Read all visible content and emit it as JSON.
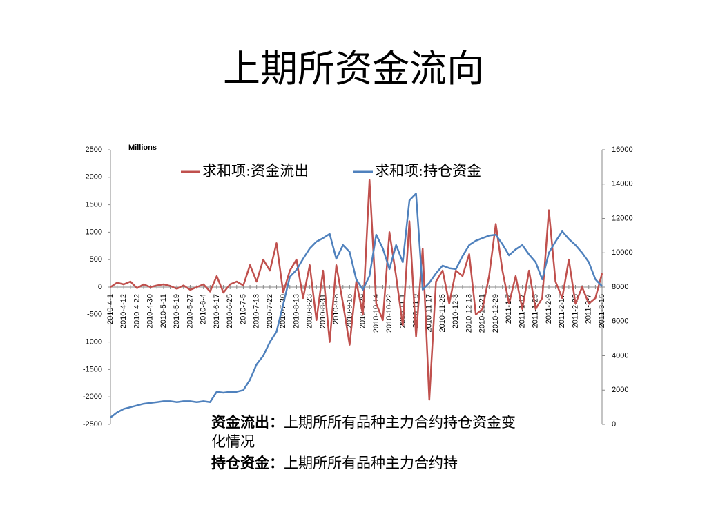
{
  "title": "上期所资金流向",
  "chart_data": {
    "type": "line",
    "unit_label": "Millions",
    "categories": [
      "2010-4-1",
      null,
      "2010-4-12",
      null,
      "2010-4-22",
      null,
      "2010-4-30",
      null,
      "2010-5-11",
      null,
      "2010-5-19",
      null,
      "2010-5-27",
      null,
      "2010-6-4",
      null,
      "2010-6-17",
      null,
      "2010-6-25",
      null,
      "2010-7-5",
      null,
      "2010-7-13",
      null,
      "2010-7-22",
      null,
      "2010-7-30",
      null,
      "2010-8-13",
      null,
      "2010-8-23",
      null,
      "2010-8-31",
      null,
      "2010-9-8",
      null,
      "2010-9-16",
      null,
      "2010-9-29",
      null,
      "2010-10-14",
      null,
      "2010-10-22",
      null,
      "2010-11-1",
      null,
      "2010-11-9",
      null,
      "2010-11-17",
      null,
      "2010-11-25",
      null,
      "2010-12-3",
      null,
      "2010-12-13",
      null,
      "2010-12-21",
      null,
      "2010-12-29",
      null,
      "2011-1-7",
      null,
      "2011-1-17",
      null,
      "2011-1-25",
      null,
      "2011-2-9",
      null,
      "2011-2-17",
      null,
      "2011-2-25",
      null,
      "2011-3-7",
      null,
      "2011-3-15"
    ],
    "series": [
      {
        "name": "求和项:资金流出",
        "color": "#c0504d",
        "values": [
          0,
          80,
          50,
          100,
          -20,
          50,
          0,
          30,
          50,
          20,
          -30,
          30,
          -50,
          0,
          50,
          -80,
          200,
          -100,
          50,
          100,
          30,
          400,
          100,
          500,
          300,
          800,
          -100,
          300,
          500,
          -200,
          400,
          -600,
          300,
          -1000,
          400,
          -300,
          -1050,
          100,
          -500,
          1950,
          -300,
          -600,
          1000,
          200,
          -700,
          1200,
          -900,
          700,
          -2050,
          100,
          300,
          -300,
          300,
          200,
          600,
          -500,
          -400,
          200,
          1150,
          300,
          -300,
          200,
          -400,
          300,
          -400,
          -200,
          1400,
          100,
          -200,
          500,
          -300,
          0,
          -300,
          -200,
          250
        ]
      },
      {
        "name": "求和项:持仓资金",
        "color": "#4f81bd",
        "axis": "y2",
        "values": [
          400,
          700,
          900,
          1000,
          1100,
          1200,
          1250,
          1300,
          1350,
          1350,
          1300,
          1350,
          1350,
          1300,
          1350,
          1300,
          1900,
          1850,
          1900,
          1900,
          2000,
          2600,
          3500,
          4000,
          4800,
          5400,
          7000,
          8600,
          9000,
          9650,
          10250,
          10650,
          10850,
          11100,
          9650,
          10450,
          10050,
          8450,
          7850,
          8650,
          11050,
          10250,
          9050,
          10450,
          9450,
          13050,
          13450,
          7850,
          8250,
          8800,
          9250,
          9100,
          9050,
          9800,
          10450,
          10700,
          10850,
          11000,
          11050,
          10500,
          9850,
          10200,
          10450,
          9900,
          9450,
          8450,
          10000,
          10650,
          11250,
          10800,
          10450,
          10000,
          9450,
          8450,
          8050
        ]
      }
    ],
    "ylim": [
      -2500,
      2500
    ],
    "yticks": [
      -2500,
      -2000,
      -1500,
      -1000,
      -500,
      0,
      500,
      1000,
      1500,
      2000,
      2500
    ],
    "y2lim": [
      0,
      16000
    ],
    "y2ticks": [
      0,
      2000,
      4000,
      6000,
      8000,
      10000,
      12000,
      14000,
      16000
    ],
    "legend": "top"
  },
  "notes": [
    {
      "term": "资金流出：",
      "text": "上期所所有品种主力合约持仓资金变化情况"
    },
    {
      "term": "持仓资金：",
      "text": "上期所所有品种主力合约持"
    }
  ]
}
